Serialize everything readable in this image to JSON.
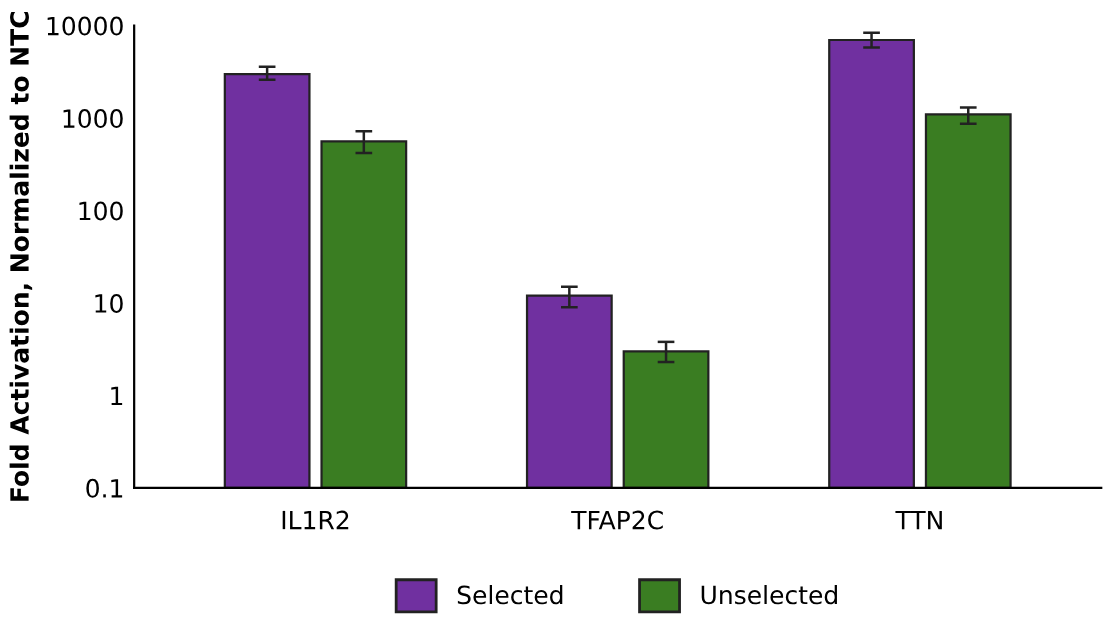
{
  "chart_data": {
    "type": "bar",
    "ylabel": "Fold Activation, Normalized to NTC",
    "categories": [
      "IL1R2",
      "TFAP2C",
      "TTN"
    ],
    "series": [
      {
        "name": "Selected",
        "color": "#7030a0",
        "values": [
          3000,
          12,
          7000
        ],
        "errors": [
          [
            2600,
            3600
          ],
          [
            9,
            15
          ],
          [
            5800,
            8400
          ]
        ]
      },
      {
        "name": "Unselected",
        "color": "#3a7d22",
        "values": [
          560,
          3,
          1100
        ],
        "errors": [
          [
            420,
            720
          ],
          [
            2.3,
            3.8
          ],
          [
            870,
            1300
          ]
        ]
      }
    ],
    "log": "y",
    "ylim": [
      0.1,
      10000
    ],
    "yticks": [
      0.1,
      1,
      10,
      100,
      1000,
      10000
    ],
    "grid": false,
    "legend": "bottom"
  }
}
